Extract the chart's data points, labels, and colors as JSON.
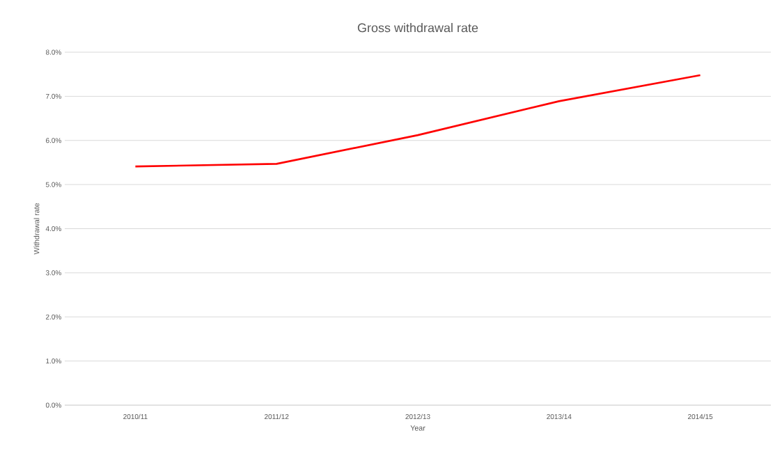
{
  "chart_data": {
    "type": "line",
    "title": "Gross withdrawal rate",
    "xlabel": "Year",
    "ylabel": "Withdrawal rate",
    "categories": [
      "2010/11",
      "2011/12",
      "2012/13",
      "2013/14",
      "2014/15"
    ],
    "series": [
      {
        "color": "#ff0000",
        "values": [
          5.41,
          5.47,
          6.12,
          6.89,
          7.48
        ]
      }
    ],
    "ylim": [
      0,
      8
    ],
    "yticks": [
      {
        "value": 0,
        "label": "0.0%"
      },
      {
        "value": 1,
        "label": "1.0%"
      },
      {
        "value": 2,
        "label": "2.0%"
      },
      {
        "value": 3,
        "label": "3.0%"
      },
      {
        "value": 4,
        "label": "4.0%"
      },
      {
        "value": 5,
        "label": "5.0%"
      },
      {
        "value": 6,
        "label": "6.0%"
      },
      {
        "value": 7,
        "label": "7.0%"
      },
      {
        "value": 8,
        "label": "8.0%"
      }
    ],
    "grid": "y",
    "marker": "none",
    "line_style": "solid"
  }
}
